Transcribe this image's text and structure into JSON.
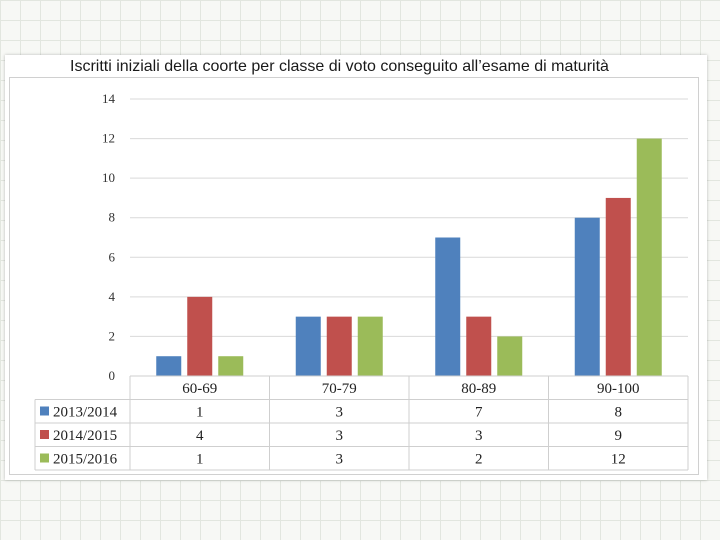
{
  "chart_data": {
    "type": "bar",
    "title": "Iscritti iniziali della coorte per classe di voto conseguito all’esame di maturità",
    "categories": [
      "60-69",
      "70-79",
      "80-89",
      "90-100"
    ],
    "series": [
      {
        "name": "2013/2014",
        "color": "#4f81bd",
        "values": [
          1,
          3,
          7,
          8
        ]
      },
      {
        "name": "2014/2015",
        "color": "#c0504d",
        "values": [
          4,
          3,
          3,
          9
        ]
      },
      {
        "name": "2015/2016",
        "color": "#9bbb59",
        "values": [
          1,
          3,
          2,
          12
        ]
      }
    ],
    "ylim": [
      0,
      14
    ],
    "yticks": [
      0,
      2,
      4,
      6,
      8,
      10,
      12,
      14
    ],
    "grid": true,
    "legend": "data-table",
    "xlabel": "",
    "ylabel": ""
  }
}
